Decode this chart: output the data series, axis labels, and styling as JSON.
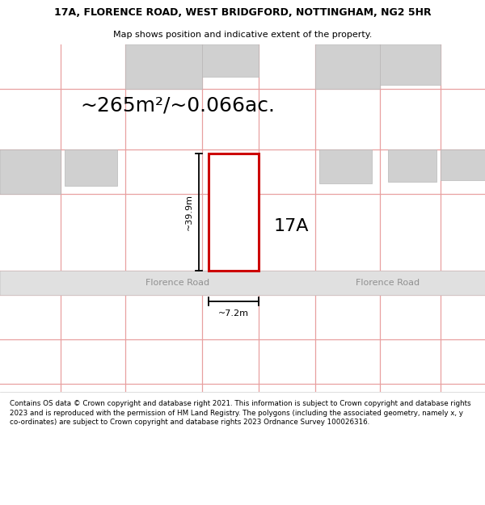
{
  "title_line1": "17A, FLORENCE ROAD, WEST BRIDGFORD, NOTTINGHAM, NG2 5HR",
  "title_line2": "Map shows position and indicative extent of the property.",
  "area_text": "~265m²/~0.066ac.",
  "label_17A": "17A",
  "dim_height": "~39.9m",
  "dim_width": "~7.2m",
  "road_name": "Florence Road",
  "road_name2": "Florence Road",
  "footer_text": "Contains OS data © Crown copyright and database right 2021. This information is subject to Crown copyright and database rights 2023 and is reproduced with the permission of HM Land Registry. The polygons (including the associated geometry, namely x, y co-ordinates) are subject to Crown copyright and database rights 2023 Ordnance Survey 100026316.",
  "bg_color": "#ffffff",
  "map_bg": "#f5f3f3",
  "plot_border": "#cc0000",
  "building_color": "#d0d0d0",
  "road_color": "#e0e0e0",
  "grid_line_color": "#e8a0a0",
  "title_fontsize": 9,
  "subtitle_fontsize": 8,
  "area_fontsize": 18,
  "label_fontsize": 16,
  "dim_fontsize": 8,
  "road_fontsize": 8
}
